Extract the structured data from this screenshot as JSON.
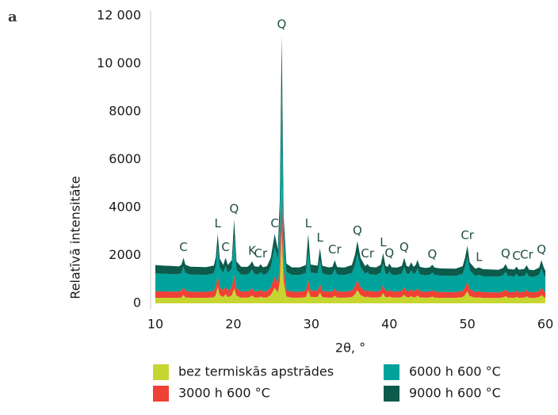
{
  "chart_data": {
    "type": "area",
    "stacked": true,
    "panel_label": "a",
    "y_label": "Relatīvā intensitāte",
    "x_label": "2θ, °",
    "xlim": [
      10,
      60.5
    ],
    "ylim": [
      0,
      12000
    ],
    "xticks": [
      10,
      20,
      30,
      40,
      50,
      60
    ],
    "yticks": [
      0,
      2000,
      4000,
      6000,
      8000,
      {
        "value": 10000,
        "label": "10 000"
      },
      {
        "value": 12000,
        "label": "12 000"
      }
    ],
    "x": [
      10,
      11,
      12,
      13,
      13.35,
      13.6,
      13.85,
      14.5,
      15.5,
      16.5,
      17.5,
      17.75,
      18,
      18.25,
      18.7,
      19,
      19.3,
      19.8,
      20.1,
      20.4,
      21,
      21.8,
      22.1,
      22.4,
      22.7,
      23.2,
      23.5,
      23.8,
      24.3,
      24.8,
      25.3,
      25.7,
      25.95,
      26.2,
      26.45,
      26.8,
      27.5,
      28.5,
      29.3,
      29.6,
      29.9,
      30.8,
      31.1,
      31.4,
      32.2,
      32.7,
      33,
      33.3,
      34.2,
      35.2,
      35.6,
      35.9,
      36.3,
      36.9,
      37.2,
      37.5,
      38.3,
      38.9,
      39.2,
      39.5,
      39.8,
      40,
      40.3,
      41,
      41.6,
      41.9,
      42.2,
      42.5,
      42.8,
      43.1,
      43.4,
      43.6,
      43.9,
      44.6,
      45.2,
      45.5,
      45.8,
      46.5,
      47.5,
      48.5,
      49.4,
      49.7,
      50,
      50.3,
      51,
      51.5,
      52,
      53,
      54,
      54.6,
      54.9,
      55.2,
      56,
      56.3,
      56.6,
      57.3,
      57.6,
      57.9,
      58.5,
      59.2,
      59.5,
      59.8,
      60
    ],
    "series": [
      {
        "name": "bez termiskās apstrādes",
        "color": "#c5d630",
        "values": [
          230,
          230,
          230,
          230,
          250,
          350,
          250,
          230,
          230,
          230,
          250,
          350,
          700,
          350,
          260,
          380,
          260,
          330,
          620,
          320,
          235,
          240,
          260,
          330,
          250,
          240,
          280,
          240,
          250,
          350,
          650,
          450,
          900,
          3000,
          900,
          280,
          235,
          235,
          260,
          550,
          270,
          260,
          450,
          260,
          235,
          240,
          320,
          240,
          235,
          260,
          380,
          550,
          350,
          250,
          280,
          245,
          240,
          270,
          430,
          260,
          250,
          290,
          245,
          240,
          260,
          360,
          260,
          250,
          300,
          250,
          270,
          330,
          250,
          235,
          245,
          280,
          240,
          230,
          230,
          230,
          260,
          350,
          500,
          300,
          235,
          250,
          230,
          225,
          225,
          250,
          300,
          240,
          230,
          270,
          230,
          240,
          290,
          235,
          225,
          260,
          350,
          260,
          225
        ]
      },
      {
        "name": "3000 h 600 °C",
        "color": "#ef4136",
        "values": [
          270,
          265,
          260,
          260,
          280,
          330,
          280,
          255,
          255,
          250,
          270,
          350,
          450,
          330,
          270,
          330,
          270,
          320,
          550,
          310,
          255,
          255,
          270,
          300,
          260,
          255,
          280,
          255,
          260,
          320,
          450,
          380,
          700,
          1900,
          600,
          280,
          250,
          250,
          270,
          420,
          270,
          260,
          360,
          260,
          250,
          255,
          300,
          255,
          250,
          270,
          340,
          420,
          320,
          260,
          270,
          255,
          250,
          270,
          340,
          260,
          255,
          280,
          250,
          250,
          260,
          320,
          260,
          255,
          290,
          255,
          270,
          310,
          255,
          245,
          250,
          270,
          250,
          245,
          240,
          240,
          260,
          320,
          400,
          290,
          240,
          250,
          235,
          235,
          230,
          250,
          280,
          240,
          235,
          260,
          235,
          240,
          270,
          235,
          230,
          250,
          310,
          250,
          225
        ]
      },
      {
        "name": "6000 h 600 °C",
        "color": "#00a39b",
        "values": [
          750,
          740,
          730,
          720,
          740,
          850,
          740,
          715,
          710,
          705,
          730,
          850,
          1200,
          820,
          740,
          850,
          740,
          800,
          1600,
          780,
          710,
          705,
          740,
          780,
          720,
          705,
          740,
          700,
          720,
          850,
          1250,
          1000,
          1800,
          4000,
          1400,
          760,
          700,
          700,
          740,
          1200,
          750,
          730,
          1000,
          730,
          700,
          710,
          820,
          705,
          695,
          740,
          900,
          1100,
          850,
          720,
          760,
          705,
          700,
          740,
          900,
          720,
          710,
          760,
          700,
          695,
          720,
          850,
          720,
          705,
          780,
          705,
          740,
          820,
          705,
          690,
          700,
          740,
          695,
          685,
          680,
          675,
          710,
          850,
          1050,
          780,
          670,
          690,
          665,
          660,
          655,
          680,
          740,
          665,
          655,
          700,
          650,
          660,
          720,
          650,
          640,
          680,
          800,
          680,
          630
        ]
      },
      {
        "name": "9000 h 600 °C",
        "color": "#0c5b4c",
        "values": [
          350,
          340,
          340,
          330,
          340,
          370,
          340,
          330,
          325,
          325,
          330,
          380,
          550,
          370,
          330,
          340,
          330,
          350,
          730,
          340,
          325,
          320,
          330,
          340,
          320,
          320,
          330,
          315,
          320,
          380,
          550,
          420,
          900,
          2300,
          700,
          340,
          315,
          315,
          330,
          730,
          330,
          320,
          490,
          320,
          315,
          315,
          360,
          315,
          310,
          330,
          420,
          530,
          380,
          320,
          330,
          315,
          310,
          330,
          430,
          320,
          315,
          330,
          310,
          305,
          320,
          370,
          320,
          315,
          340,
          315,
          330,
          360,
          315,
          305,
          310,
          320,
          305,
          300,
          300,
          300,
          320,
          380,
          450,
          340,
          300,
          305,
          295,
          295,
          290,
          300,
          320,
          295,
          290,
          300,
          290,
          295,
          310,
          290,
          285,
          300,
          340,
          300,
          285
        ]
      }
    ],
    "annotations": [
      {
        "text": "C",
        "x": 13.6
      },
      {
        "text": "L",
        "x": 18
      },
      {
        "text": "C",
        "x": 19
      },
      {
        "text": "Q",
        "x": 20.1
      },
      {
        "text": "K",
        "x": 22.4
      },
      {
        "text": "Cr",
        "x": 23.5
      },
      {
        "text": "C",
        "x": 25.3
      },
      {
        "text": "Q",
        "x": 26.2
      },
      {
        "text": "L",
        "x": 29.6
      },
      {
        "text": "L",
        "x": 31.1
      },
      {
        "text": "Cr",
        "x": 33
      },
      {
        "text": "Q",
        "x": 35.9
      },
      {
        "text": "Cr",
        "x": 37.2
      },
      {
        "text": "L",
        "x": 39.2
      },
      {
        "text": "Q",
        "x": 40
      },
      {
        "text": "Q",
        "x": 41.9
      },
      {
        "text": "Q",
        "x": 45.5
      },
      {
        "text": "Cr",
        "x": 50
      },
      {
        "text": "L",
        "x": 51.5
      },
      {
        "text": "Q",
        "x": 54.9
      },
      {
        "text": "C",
        "x": 56.3
      },
      {
        "text": "Cr",
        "x": 57.6
      },
      {
        "text": "Q",
        "x": 59.5
      }
    ]
  }
}
